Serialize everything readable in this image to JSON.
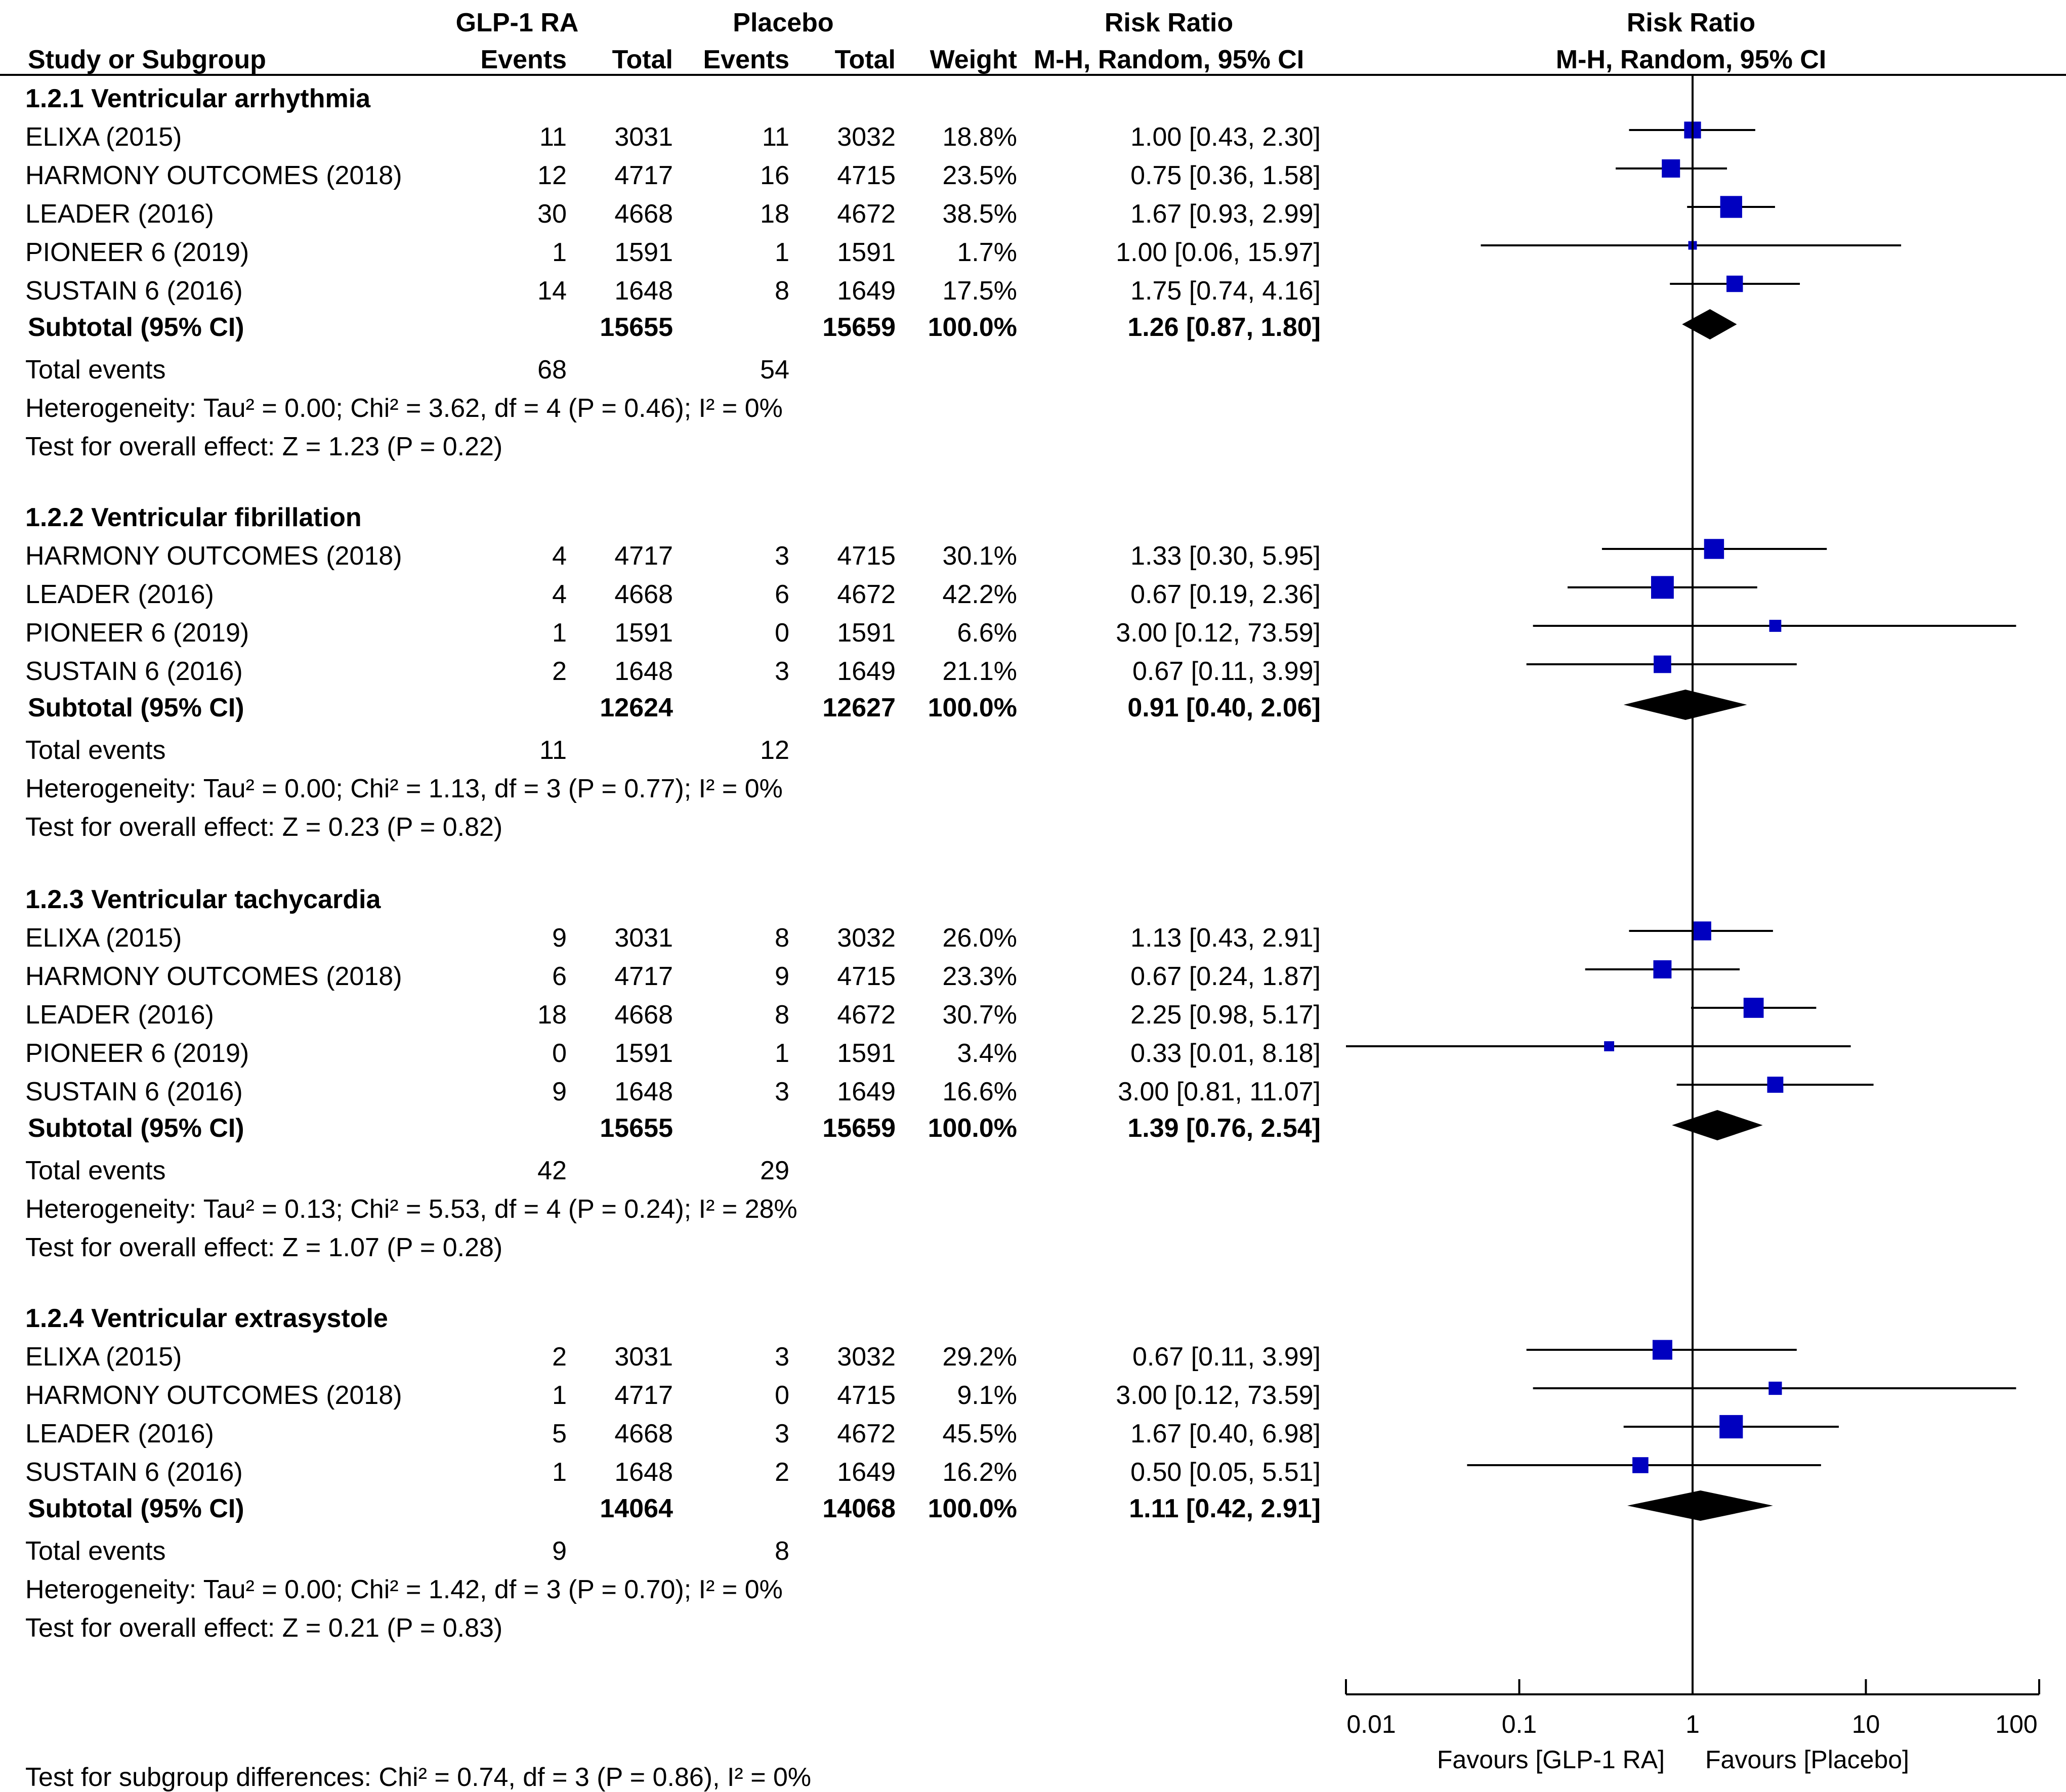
{
  "chart_data": {
    "type": "forest",
    "header": {
      "study": "Study or Subgroup",
      "group1": "GLP-1 RA",
      "group2": "Placebo",
      "events": "Events",
      "total": "Total",
      "weight": "Weight",
      "rr_title": "Risk Ratio",
      "rr_method": "M-H, Random, 95% CI",
      "plot_title": "Risk Ratio",
      "plot_method": "M-H, Random, 95% CI"
    },
    "subgroups": [
      {
        "title": "1.2.1 Ventricular arrhythmia",
        "studies": [
          {
            "name": "ELIXA (2015)",
            "e1": "11",
            "n1": "3031",
            "e2": "11",
            "n2": "3032",
            "weight": "18.8%",
            "ci_text": "1.00 [0.43, 2.30]",
            "rr": 1.0,
            "lo": 0.43,
            "hi": 2.3
          },
          {
            "name": "HARMONY OUTCOMES (2018)",
            "e1": "12",
            "n1": "4717",
            "e2": "16",
            "n2": "4715",
            "weight": "23.5%",
            "ci_text": "0.75 [0.36, 1.58]",
            "rr": 0.75,
            "lo": 0.36,
            "hi": 1.58
          },
          {
            "name": "LEADER (2016)",
            "e1": "30",
            "n1": "4668",
            "e2": "18",
            "n2": "4672",
            "weight": "38.5%",
            "ci_text": "1.67 [0.93, 2.99]",
            "rr": 1.67,
            "lo": 0.93,
            "hi": 2.99
          },
          {
            "name": "PIONEER 6 (2019)",
            "e1": "1",
            "n1": "1591",
            "e2": "1",
            "n2": "1591",
            "weight": "1.7%",
            "ci_text": "1.00 [0.06, 15.97]",
            "rr": 1.0,
            "lo": 0.06,
            "hi": 15.97
          },
          {
            "name": "SUSTAIN 6 (2016)",
            "e1": "14",
            "n1": "1648",
            "e2": "8",
            "n2": "1649",
            "weight": "17.5%",
            "ci_text": "1.75 [0.74, 4.16]",
            "rr": 1.75,
            "lo": 0.74,
            "hi": 4.16
          }
        ],
        "subtotal": {
          "label": "Subtotal (95% CI)",
          "n1": "15655",
          "n2": "15659",
          "weight": "100.0%",
          "ci_text": "1.26 [0.87, 1.80]",
          "rr": 1.26,
          "lo": 0.87,
          "hi": 1.8
        },
        "total_events": {
          "label": "Total events",
          "e1": "68",
          "e2": "54"
        },
        "heterogeneity": "Heterogeneity: Tau² = 0.00; Chi² = 3.62, df = 4 (P = 0.46); I² = 0%",
        "overall": "Test for overall effect: Z = 1.23 (P = 0.22)"
      },
      {
        "title": "1.2.2 Ventricular fibrillation",
        "studies": [
          {
            "name": "HARMONY OUTCOMES (2018)",
            "e1": "4",
            "n1": "4717",
            "e2": "3",
            "n2": "4715",
            "weight": "30.1%",
            "ci_text": "1.33 [0.30, 5.95]",
            "rr": 1.33,
            "lo": 0.3,
            "hi": 5.95
          },
          {
            "name": "LEADER (2016)",
            "e1": "4",
            "n1": "4668",
            "e2": "6",
            "n2": "4672",
            "weight": "42.2%",
            "ci_text": "0.67 [0.19, 2.36]",
            "rr": 0.67,
            "lo": 0.19,
            "hi": 2.36
          },
          {
            "name": "PIONEER 6 (2019)",
            "e1": "1",
            "n1": "1591",
            "e2": "0",
            "n2": "1591",
            "weight": "6.6%",
            "ci_text": "3.00 [0.12, 73.59]",
            "rr": 3.0,
            "lo": 0.12,
            "hi": 73.59
          },
          {
            "name": "SUSTAIN 6 (2016)",
            "e1": "2",
            "n1": "1648",
            "e2": "3",
            "n2": "1649",
            "weight": "21.1%",
            "ci_text": "0.67 [0.11, 3.99]",
            "rr": 0.67,
            "lo": 0.11,
            "hi": 3.99
          }
        ],
        "subtotal": {
          "label": "Subtotal (95% CI)",
          "n1": "12624",
          "n2": "12627",
          "weight": "100.0%",
          "ci_text": "0.91 [0.40, 2.06]",
          "rr": 0.91,
          "lo": 0.4,
          "hi": 2.06
        },
        "total_events": {
          "label": "Total events",
          "e1": "11",
          "e2": "12"
        },
        "heterogeneity": "Heterogeneity: Tau² = 0.00; Chi² = 1.13, df = 3 (P = 0.77); I² = 0%",
        "overall": "Test for overall effect: Z = 0.23 (P = 0.82)"
      },
      {
        "title": "1.2.3 Ventricular tachycardia",
        "studies": [
          {
            "name": "ELIXA (2015)",
            "e1": "9",
            "n1": "3031",
            "e2": "8",
            "n2": "3032",
            "weight": "26.0%",
            "ci_text": "1.13 [0.43, 2.91]",
            "rr": 1.13,
            "lo": 0.43,
            "hi": 2.91
          },
          {
            "name": "HARMONY OUTCOMES (2018)",
            "e1": "6",
            "n1": "4717",
            "e2": "9",
            "n2": "4715",
            "weight": "23.3%",
            "ci_text": "0.67 [0.24, 1.87]",
            "rr": 0.67,
            "lo": 0.24,
            "hi": 1.87
          },
          {
            "name": "LEADER (2016)",
            "e1": "18",
            "n1": "4668",
            "e2": "8",
            "n2": "4672",
            "weight": "30.7%",
            "ci_text": "2.25 [0.98, 5.17]",
            "rr": 2.25,
            "lo": 0.98,
            "hi": 5.17
          },
          {
            "name": "PIONEER 6 (2019)",
            "e1": "0",
            "n1": "1591",
            "e2": "1",
            "n2": "1591",
            "weight": "3.4%",
            "ci_text": "0.33 [0.01, 8.18]",
            "rr": 0.33,
            "lo": 0.01,
            "hi": 8.18
          },
          {
            "name": "SUSTAIN 6 (2016)",
            "e1": "9",
            "n1": "1648",
            "e2": "3",
            "n2": "1649",
            "weight": "16.6%",
            "ci_text": "3.00 [0.81, 11.07]",
            "rr": 3.0,
            "lo": 0.81,
            "hi": 11.07
          }
        ],
        "subtotal": {
          "label": "Subtotal (95% CI)",
          "n1": "15655",
          "n2": "15659",
          "weight": "100.0%",
          "ci_text": "1.39 [0.76, 2.54]",
          "rr": 1.39,
          "lo": 0.76,
          "hi": 2.54
        },
        "total_events": {
          "label": "Total events",
          "e1": "42",
          "e2": "29"
        },
        "heterogeneity": "Heterogeneity: Tau² = 0.13; Chi² = 5.53, df = 4 (P = 0.24); I² = 28%",
        "overall": "Test for overall effect: Z = 1.07 (P = 0.28)"
      },
      {
        "title": "1.2.4 Ventricular extrasystole",
        "studies": [
          {
            "name": "ELIXA (2015)",
            "e1": "2",
            "n1": "3031",
            "e2": "3",
            "n2": "3032",
            "weight": "29.2%",
            "ci_text": "0.67 [0.11, 3.99]",
            "rr": 0.67,
            "lo": 0.11,
            "hi": 3.99
          },
          {
            "name": "HARMONY OUTCOMES (2018)",
            "e1": "1",
            "n1": "4717",
            "e2": "0",
            "n2": "4715",
            "weight": "9.1%",
            "ci_text": "3.00 [0.12, 73.59]",
            "rr": 3.0,
            "lo": 0.12,
            "hi": 73.59
          },
          {
            "name": "LEADER (2016)",
            "e1": "5",
            "n1": "4668",
            "e2": "3",
            "n2": "4672",
            "weight": "45.5%",
            "ci_text": "1.67 [0.40, 6.98]",
            "rr": 1.67,
            "lo": 0.4,
            "hi": 6.98
          },
          {
            "name": "SUSTAIN 6 (2016)",
            "e1": "1",
            "n1": "1648",
            "e2": "2",
            "n2": "1649",
            "weight": "16.2%",
            "ci_text": "0.50 [0.05, 5.51]",
            "rr": 0.5,
            "lo": 0.05,
            "hi": 5.51
          }
        ],
        "subtotal": {
          "label": "Subtotal (95% CI)",
          "n1": "14064",
          "n2": "14068",
          "weight": "100.0%",
          "ci_text": "1.11 [0.42, 2.91]",
          "rr": 1.11,
          "lo": 0.42,
          "hi": 2.91
        },
        "total_events": {
          "label": "Total events",
          "e1": "9",
          "e2": "8"
        },
        "heterogeneity": "Heterogeneity: Tau² = 0.00; Chi² = 1.42, df = 3 (P = 0.70); I² = 0%",
        "overall": "Test for overall effect: Z = 0.21 (P = 0.83)"
      }
    ],
    "axis": {
      "scale": "log",
      "range": [
        0.01,
        100
      ],
      "ticks": [
        0.01,
        0.1,
        1,
        10,
        100
      ],
      "tick_labels": [
        "0.01",
        "0.1",
        "1",
        "10",
        "100"
      ],
      "null_value": 1,
      "favours_left": "Favours [GLP-1 RA]",
      "favours_right": "Favours [Placebo]"
    },
    "footer": "Test for subgroup differences: Chi² = 0.74, df = 3 (P = 0.86), I² = 0%"
  },
  "colors": {
    "square": "#0000c0",
    "diamond": "#000000",
    "line": "#000000",
    "text": "#000000"
  }
}
